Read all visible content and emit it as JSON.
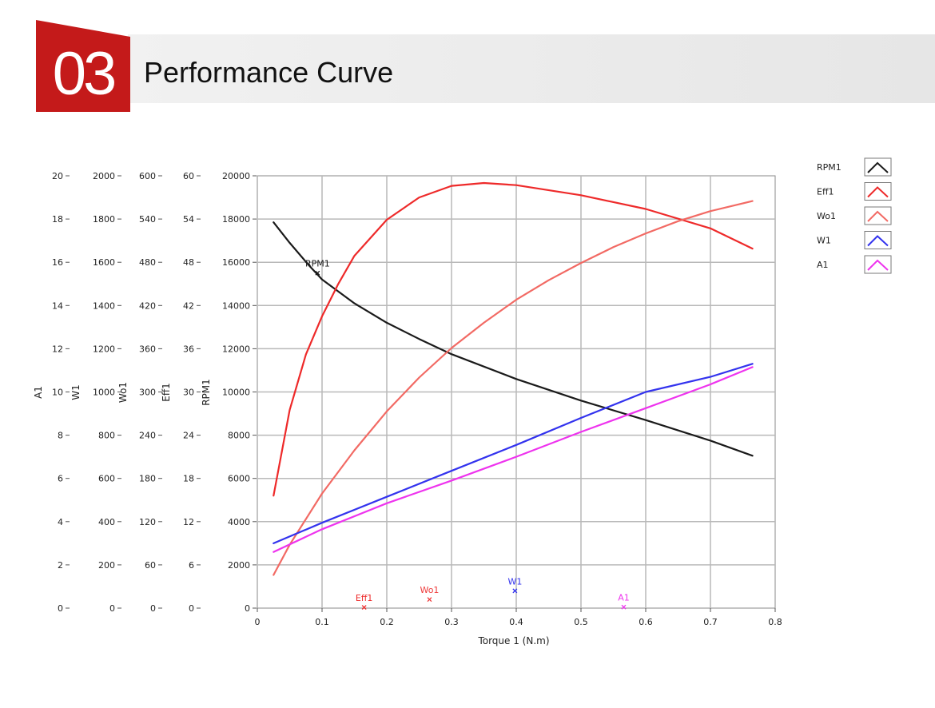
{
  "header": {
    "number": "03",
    "title": "Performance Curve",
    "accent_color": "#c41a1a"
  },
  "chart_data": {
    "type": "line",
    "xlabel": "Torque 1 (N.m)",
    "xlim": [
      0,
      0.8
    ],
    "x_ticks": [
      "0",
      "0.1",
      "0.2",
      "0.3",
      "0.4",
      "0.5",
      "0.6",
      "0.7",
      "0.8"
    ],
    "grid": true,
    "legend_position": "top-right",
    "y_axes": [
      {
        "label": "A1",
        "range": [
          0,
          20
        ],
        "ticks": [
          "0",
          "2",
          "4",
          "6",
          "8",
          "10",
          "12",
          "14",
          "16",
          "18",
          "20"
        ]
      },
      {
        "label": "W1",
        "range": [
          0,
          2000
        ],
        "ticks": [
          "0",
          "200",
          "400",
          "600",
          "800",
          "1000",
          "1200",
          "1400",
          "1600",
          "1800",
          "2000"
        ]
      },
      {
        "label": "Wo1",
        "range": [
          0,
          600
        ],
        "ticks": [
          "0",
          "60",
          "120",
          "180",
          "240",
          "300",
          "360",
          "420",
          "480",
          "540",
          "600"
        ]
      },
      {
        "label": "Eff1",
        "range": [
          0,
          60
        ],
        "ticks": [
          "0",
          "6",
          "12",
          "18",
          "24",
          "30",
          "36",
          "42",
          "48",
          "54",
          "60"
        ]
      },
      {
        "label": "RPM1",
        "range": [
          0,
          20000
        ],
        "ticks": [
          "0",
          "2000",
          "4000",
          "6000",
          "8000",
          "10000",
          "12000",
          "14000",
          "16000",
          "18000",
          "20000"
        ]
      }
    ],
    "series": [
      {
        "name": "RPM1",
        "axis": 4,
        "color": "#1a1a1a",
        "x": [
          0.025,
          0.05,
          0.08,
          0.1,
          0.15,
          0.2,
          0.25,
          0.3,
          0.4,
          0.5,
          0.6,
          0.7,
          0.765
        ],
        "y": [
          17850,
          16900,
          15850,
          15200,
          14100,
          13200,
          12450,
          11750,
          10600,
          9600,
          8700,
          7750,
          7050
        ]
      },
      {
        "name": "Eff1",
        "axis": 3,
        "color": "#ee2a2a",
        "x": [
          0.025,
          0.05,
          0.075,
          0.1,
          0.125,
          0.15,
          0.2,
          0.25,
          0.3,
          0.35,
          0.4,
          0.5,
          0.6,
          0.7,
          0.765
        ],
        "y": [
          15.6,
          27.5,
          35.2,
          40.5,
          45.0,
          48.9,
          53.9,
          57.0,
          58.6,
          59.0,
          58.7,
          57.3,
          55.4,
          52.7,
          49.9
        ]
      },
      {
        "name": "Wo1",
        "axis": 2,
        "color": "#f26a64",
        "x": [
          0.025,
          0.05,
          0.1,
          0.15,
          0.2,
          0.25,
          0.3,
          0.35,
          0.4,
          0.45,
          0.5,
          0.55,
          0.6,
          0.65,
          0.7,
          0.765
        ],
        "y": [
          46,
          88,
          159,
          219,
          273,
          320,
          361,
          396,
          428,
          455,
          479,
          501,
          520,
          537,
          551,
          565
        ]
      },
      {
        "name": "W1",
        "axis": 1,
        "color": "#3333ee",
        "x": [
          0.025,
          0.1,
          0.2,
          0.3,
          0.4,
          0.5,
          0.6,
          0.7,
          0.765
        ],
        "y": [
          300,
          395,
          515,
          635,
          755,
          880,
          1000,
          1070,
          1130
        ]
      },
      {
        "name": "A1",
        "axis": 0,
        "color": "#ee33ee",
        "x": [
          0.025,
          0.1,
          0.2,
          0.3,
          0.4,
          0.5,
          0.6,
          0.7,
          0.765
        ],
        "y": [
          2.6,
          3.65,
          4.85,
          5.9,
          7.0,
          8.15,
          9.25,
          10.35,
          11.15
        ]
      }
    ],
    "cursors": [
      {
        "name": "RPM1",
        "x": 0.093,
        "axis": 4,
        "y": 15500,
        "color": "#1a1a1a"
      },
      {
        "name": "Eff1",
        "x": 0.165,
        "axis": 3,
        "y": 0.1,
        "color": "#ee2a2a"
      },
      {
        "name": "Wo1",
        "x": 0.266,
        "axis": 2,
        "y": 12,
        "color": "#ee3a3a"
      },
      {
        "name": "W1",
        "x": 0.398,
        "axis": 1,
        "y": 80,
        "color": "#3333ee"
      },
      {
        "name": "A1",
        "x": 0.566,
        "axis": 0,
        "y": 0.05,
        "color": "#ee33ee"
      }
    ]
  }
}
